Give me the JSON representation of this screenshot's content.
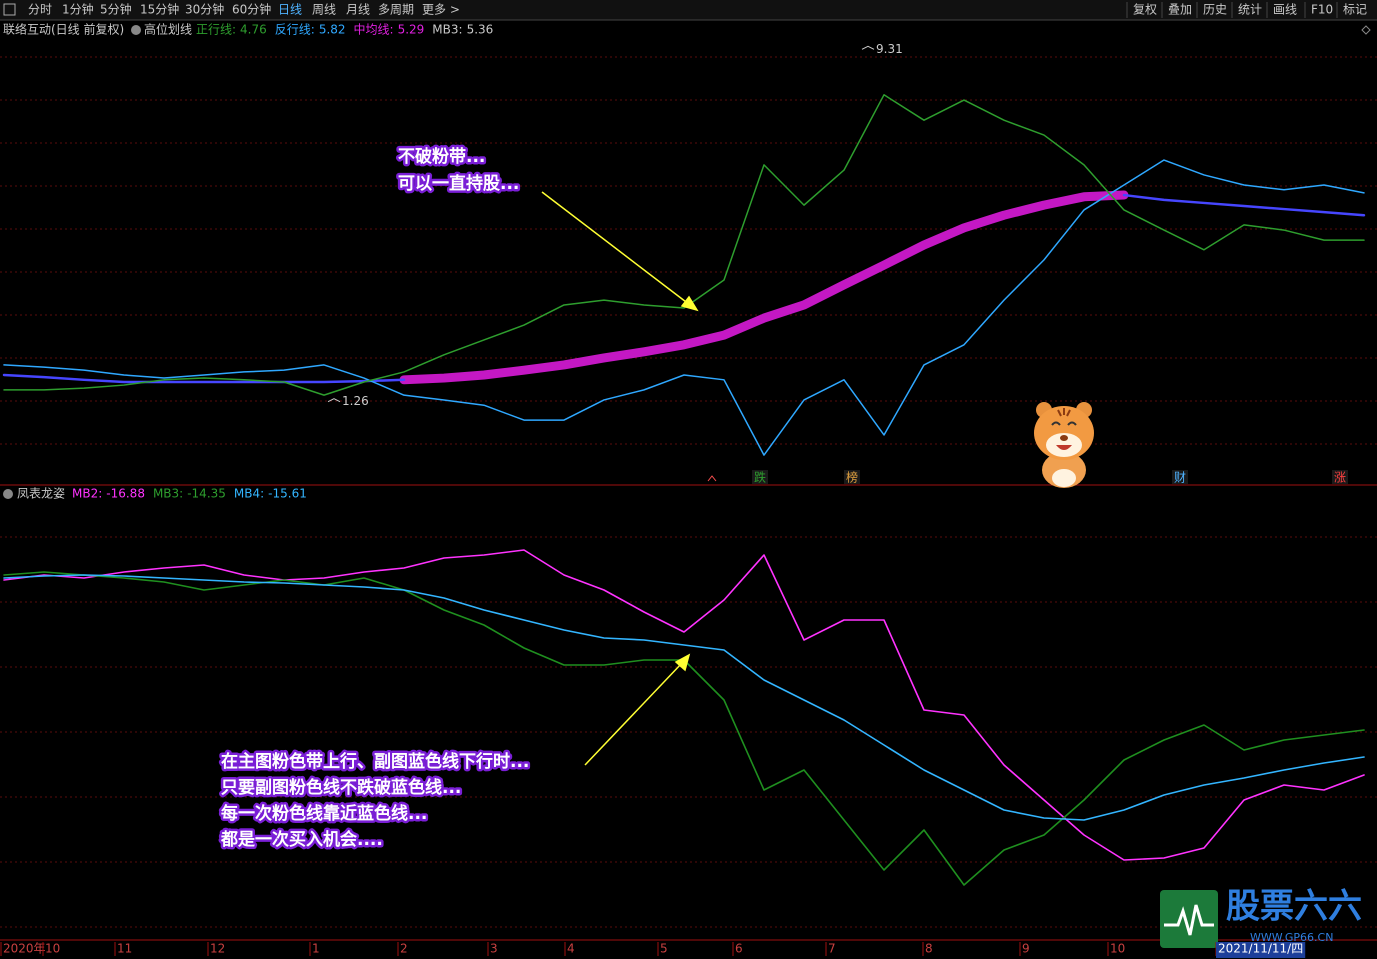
{
  "toolbar": {
    "periods": [
      "分时",
      "1分钟",
      "5分钟",
      "15分钟",
      "30分钟",
      "60分钟",
      "日线",
      "周线",
      "月线",
      "多周期",
      "更多 >"
    ],
    "tools": [
      "复权",
      "叠加",
      "历史",
      "统计",
      "画线",
      "F10",
      "标记"
    ]
  },
  "main_panel": {
    "stock": "联络互动(日线 前复权)",
    "indicator": "高位划线",
    "legend": [
      {
        "name": "正行线:",
        "value": 4.76,
        "color": "#2e9e2e"
      },
      {
        "name": "反行线:",
        "value": 5.82,
        "color": "#2fa8ff"
      },
      {
        "name": "中均线:",
        "value": 5.29,
        "color": "#e020e0"
      },
      {
        "name": "MB3:",
        "value": 5.36,
        "color": "#c8c8c8"
      }
    ],
    "ylim": [
      -0.3,
      9.75
    ],
    "high_label": 9.31,
    "low_label": 1.26,
    "series": [
      {
        "name": "中均线",
        "color": "#c418c4",
        "values": [
          null,
          null,
          null,
          null,
          null,
          null,
          null,
          null,
          null,
          null,
          1.76,
          1.8,
          1.87,
          1.98,
          2.1,
          2.26,
          2.4,
          2.56,
          2.78,
          3.17,
          3.47,
          3.93,
          4.38,
          4.84,
          5.23,
          5.52,
          5.75,
          5.94,
          5.98,
          null,
          null,
          null,
          null,
          null,
          null
        ]
      },
      {
        "name": "MB3",
        "color": "#4646ff",
        "values": [
          1.87,
          1.82,
          1.76,
          1.71,
          1.71,
          1.71,
          1.71,
          1.71,
          1.71,
          1.73,
          1.76,
          null,
          null,
          null,
          null,
          null,
          null,
          null,
          null,
          null,
          null,
          null,
          null,
          null,
          null,
          null,
          null,
          null,
          5.98,
          5.87,
          5.8,
          5.73,
          5.66,
          5.59,
          5.52
        ]
      },
      {
        "name": "反行线",
        "color": "#2fa8ff",
        "values": [
          2.1,
          2.05,
          1.98,
          1.87,
          1.8,
          1.87,
          1.94,
          1.98,
          2.1,
          1.8,
          1.41,
          1.3,
          1.18,
          0.84,
          0.84,
          1.3,
          1.53,
          1.87,
          1.76,
          0.04,
          1.3,
          1.76,
          0.5,
          2.1,
          2.56,
          3.58,
          4.5,
          5.64,
          6.21,
          6.78,
          6.44,
          6.21,
          6.1,
          6.21,
          6.03
        ]
      },
      {
        "name": "正行线",
        "color": "#2e9e2e",
        "values": [
          1.53,
          1.53,
          1.57,
          1.64,
          1.76,
          1.8,
          1.76,
          1.71,
          1.41,
          1.71,
          1.94,
          2.33,
          2.67,
          3.01,
          3.47,
          3.58,
          3.47,
          3.4,
          4.04,
          6.67,
          5.75,
          6.55,
          8.27,
          7.69,
          8.15,
          7.69,
          7.35,
          6.67,
          5.64,
          5.18,
          4.73,
          5.3,
          5.18,
          4.95,
          4.95
        ]
      }
    ],
    "event_tags": [
      "跌",
      "榜",
      "财",
      "涨"
    ],
    "annotation": [
      "不破粉带...",
      "可以一直持股..."
    ]
  },
  "sub_panel": {
    "indicator": "凤表龙姿",
    "legend": [
      {
        "name": "MB2:",
        "value": -16.88,
        "color": "#ff33ff"
      },
      {
        "name": "MB3:",
        "value": -14.35,
        "color": "#2e9e2e"
      },
      {
        "name": "MB4:",
        "value": -15.61,
        "color": "#33b5ff"
      }
    ],
    "ylim": [
      -26.8,
      -0.4
    ],
    "series": [
      {
        "name": "MB2",
        "color": "#ff33ff",
        "values": [
          -5.2,
          -4.9,
          -5.08,
          -4.72,
          -4.48,
          -4.3,
          -4.9,
          -5.2,
          -5.08,
          -4.72,
          -4.48,
          -3.88,
          -3.7,
          -3.4,
          -4.9,
          -5.8,
          -7.12,
          -8.32,
          -6.4,
          -3.7,
          -8.8,
          -7.6,
          -7.6,
          -13.0,
          -13.3,
          -16.3,
          -18.4,
          -20.5,
          -22.0,
          -21.88,
          -21.28,
          -18.4,
          -17.5,
          -17.8,
          -16.9
        ]
      },
      {
        "name": "MB3",
        "color": "#1f8f1f",
        "values": [
          -4.9,
          -4.72,
          -4.9,
          -5.08,
          -5.32,
          -5.8,
          -5.5,
          -5.2,
          -5.5,
          -5.08,
          -5.8,
          -7.0,
          -7.9,
          -9.28,
          -10.3,
          -10.3,
          -10.0,
          -10.0,
          -12.4,
          -17.8,
          -16.6,
          -19.6,
          -22.6,
          -20.2,
          -23.5,
          -21.4,
          -20.5,
          -18.4,
          -16.0,
          -14.8,
          -13.9,
          -15.4,
          -14.8,
          -14.5,
          -14.2
        ]
      },
      {
        "name": "MB4",
        "color": "#33b5ff",
        "values": [
          -5.08,
          -4.96,
          -4.9,
          -4.96,
          -5.08,
          -5.2,
          -5.32,
          -5.38,
          -5.5,
          -5.62,
          -5.8,
          -6.28,
          -7.0,
          -7.6,
          -8.2,
          -8.68,
          -8.8,
          -9.1,
          -9.4,
          -11.2,
          -12.4,
          -13.6,
          -15.1,
          -16.6,
          -17.8,
          -19.0,
          -19.48,
          -19.6,
          -19.0,
          -18.1,
          -17.5,
          -17.08,
          -16.6,
          -16.18,
          -15.82
        ]
      }
    ],
    "annotation": [
      "在主图粉色带上行、副图蓝色线下行时...",
      "只要副图粉色线不跌破蓝色线...",
      "每一次粉色线靠近蓝色线...",
      "都是一次买入机会...."
    ]
  },
  "date_axis": [
    "2020年",
    "10",
    "11",
    "12",
    "1",
    "2",
    "3",
    "4",
    "5",
    "6",
    "7",
    "8",
    "9",
    "10",
    "2021/11/11/四"
  ],
  "watermark": {
    "brand": "股票六六",
    "site": "WWW.GP66.CN"
  }
}
